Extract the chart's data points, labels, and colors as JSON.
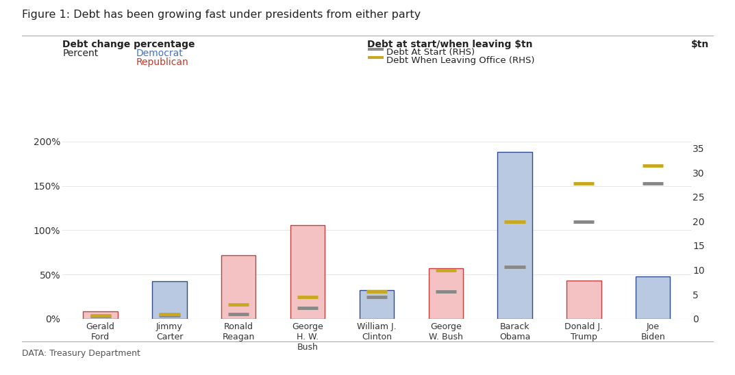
{
  "title": "Figure 1: Debt has been growing fast under presidents from either party",
  "subtitle_left": "Debt change percentage",
  "subtitle_left2": "Percent",
  "subtitle_right": "Debt at start/when leaving $tn",
  "ylabel_right": "$tn",
  "source": "DATA: Treasury Department",
  "presidents": [
    "Gerald\nFord",
    "Jimmy\nCarter",
    "Ronald\nReagan",
    "George\nH. W.\nBush",
    "William J.\nClinton",
    "George\nW. Bush",
    "Barack\nObama",
    "Donald J.\nTrump",
    "Joe\nBiden"
  ],
  "party": [
    "R",
    "D",
    "R",
    "R",
    "D",
    "R",
    "D",
    "R",
    "D"
  ],
  "debt_change_pct": [
    8,
    42,
    72,
    106,
    32,
    57,
    188,
    43,
    48
  ],
  "debt_at_start": [
    0.6,
    0.7,
    1.0,
    2.2,
    4.4,
    5.6,
    10.6,
    19.9,
    27.8
  ],
  "debt_when_leaving": [
    0.7,
    1.0,
    2.9,
    4.4,
    5.6,
    10.0,
    19.9,
    27.8,
    31.4
  ],
  "bar_color_dem": "#b8c9e1",
  "bar_color_rep": "#f4c2c2",
  "bar_edge_dem": "#2f4b8c",
  "bar_edge_rep": "#c04040",
  "line_color_start": "#888888",
  "line_color_leaving": "#c8a820",
  "dem_label_color": "#4472c4",
  "rep_label_color": "#c0392b",
  "ylim_left": [
    0,
    220
  ],
  "ylim_right": [
    0,
    40
  ],
  "yticks_left": [
    0,
    50,
    100,
    150,
    200
  ],
  "yticks_right": [
    0,
    5,
    10,
    15,
    20,
    25,
    30,
    35
  ],
  "background_color": "#ffffff"
}
